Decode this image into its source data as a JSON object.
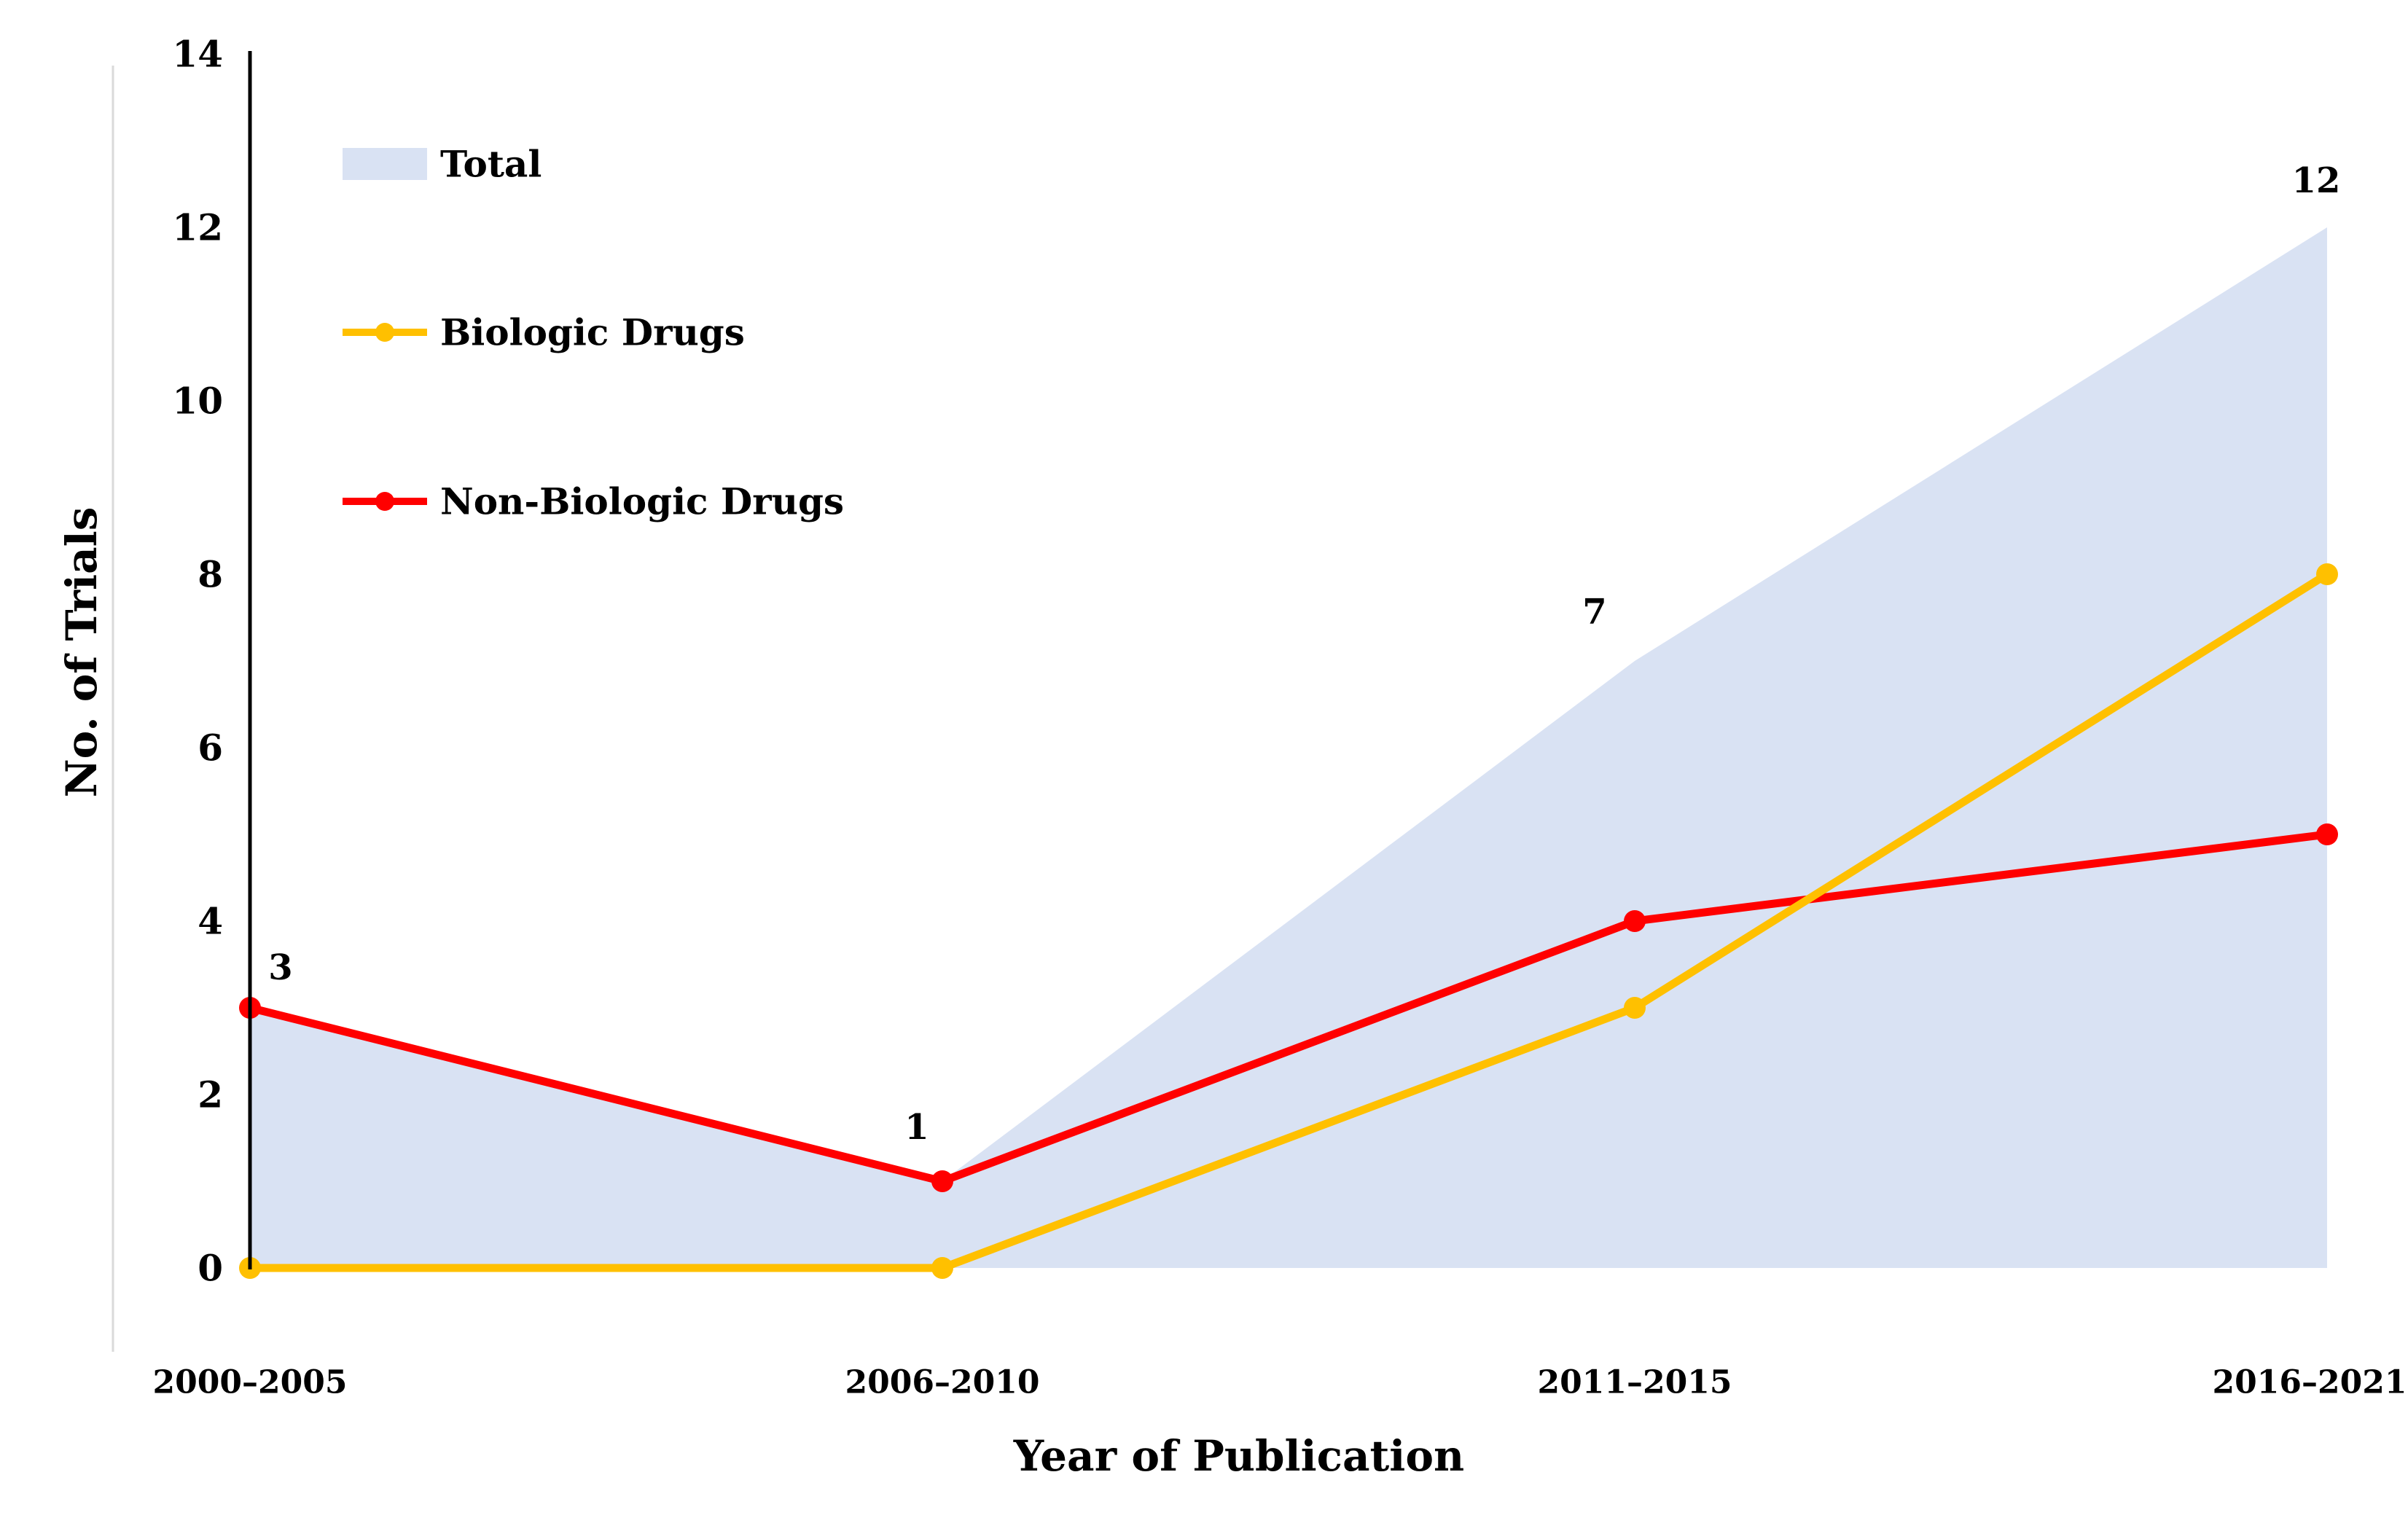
{
  "chart_data": {
    "type": "area",
    "categories": [
      "2000–2005",
      "2006–2010",
      "2011–2015",
      "2016–2021"
    ],
    "series": [
      {
        "name": "Total",
        "type": "area",
        "color": "#D9E2F3",
        "values": [
          3,
          1,
          7,
          12
        ]
      },
      {
        "name": "Biologic Drugs",
        "type": "line",
        "color": "#FFC000",
        "values": [
          0,
          0,
          3,
          8
        ]
      },
      {
        "name": "Non-Biologic Drugs",
        "type": "line",
        "color": "#FF0000",
        "values": [
          3,
          1,
          4,
          5
        ]
      }
    ],
    "point_labels": [
      "3",
      "1",
      "7",
      "12"
    ],
    "xlabel": "Year of Publication",
    "ylabel": "No. of Trials",
    "ylim": [
      0,
      14
    ],
    "ytick_step": 2,
    "yticks": [
      "0",
      "2",
      "4",
      "6",
      "8",
      "10",
      "12",
      "14"
    ],
    "legend": {
      "position": "inside-top-left",
      "items": [
        "Total",
        "Biologic Drugs",
        "Non-Biologic Drugs"
      ]
    },
    "grid": false,
    "colors": {
      "axis": "#000000",
      "text": "#000000",
      "plot_left_border": "#DADADA",
      "background": "#FFFFFF"
    }
  }
}
